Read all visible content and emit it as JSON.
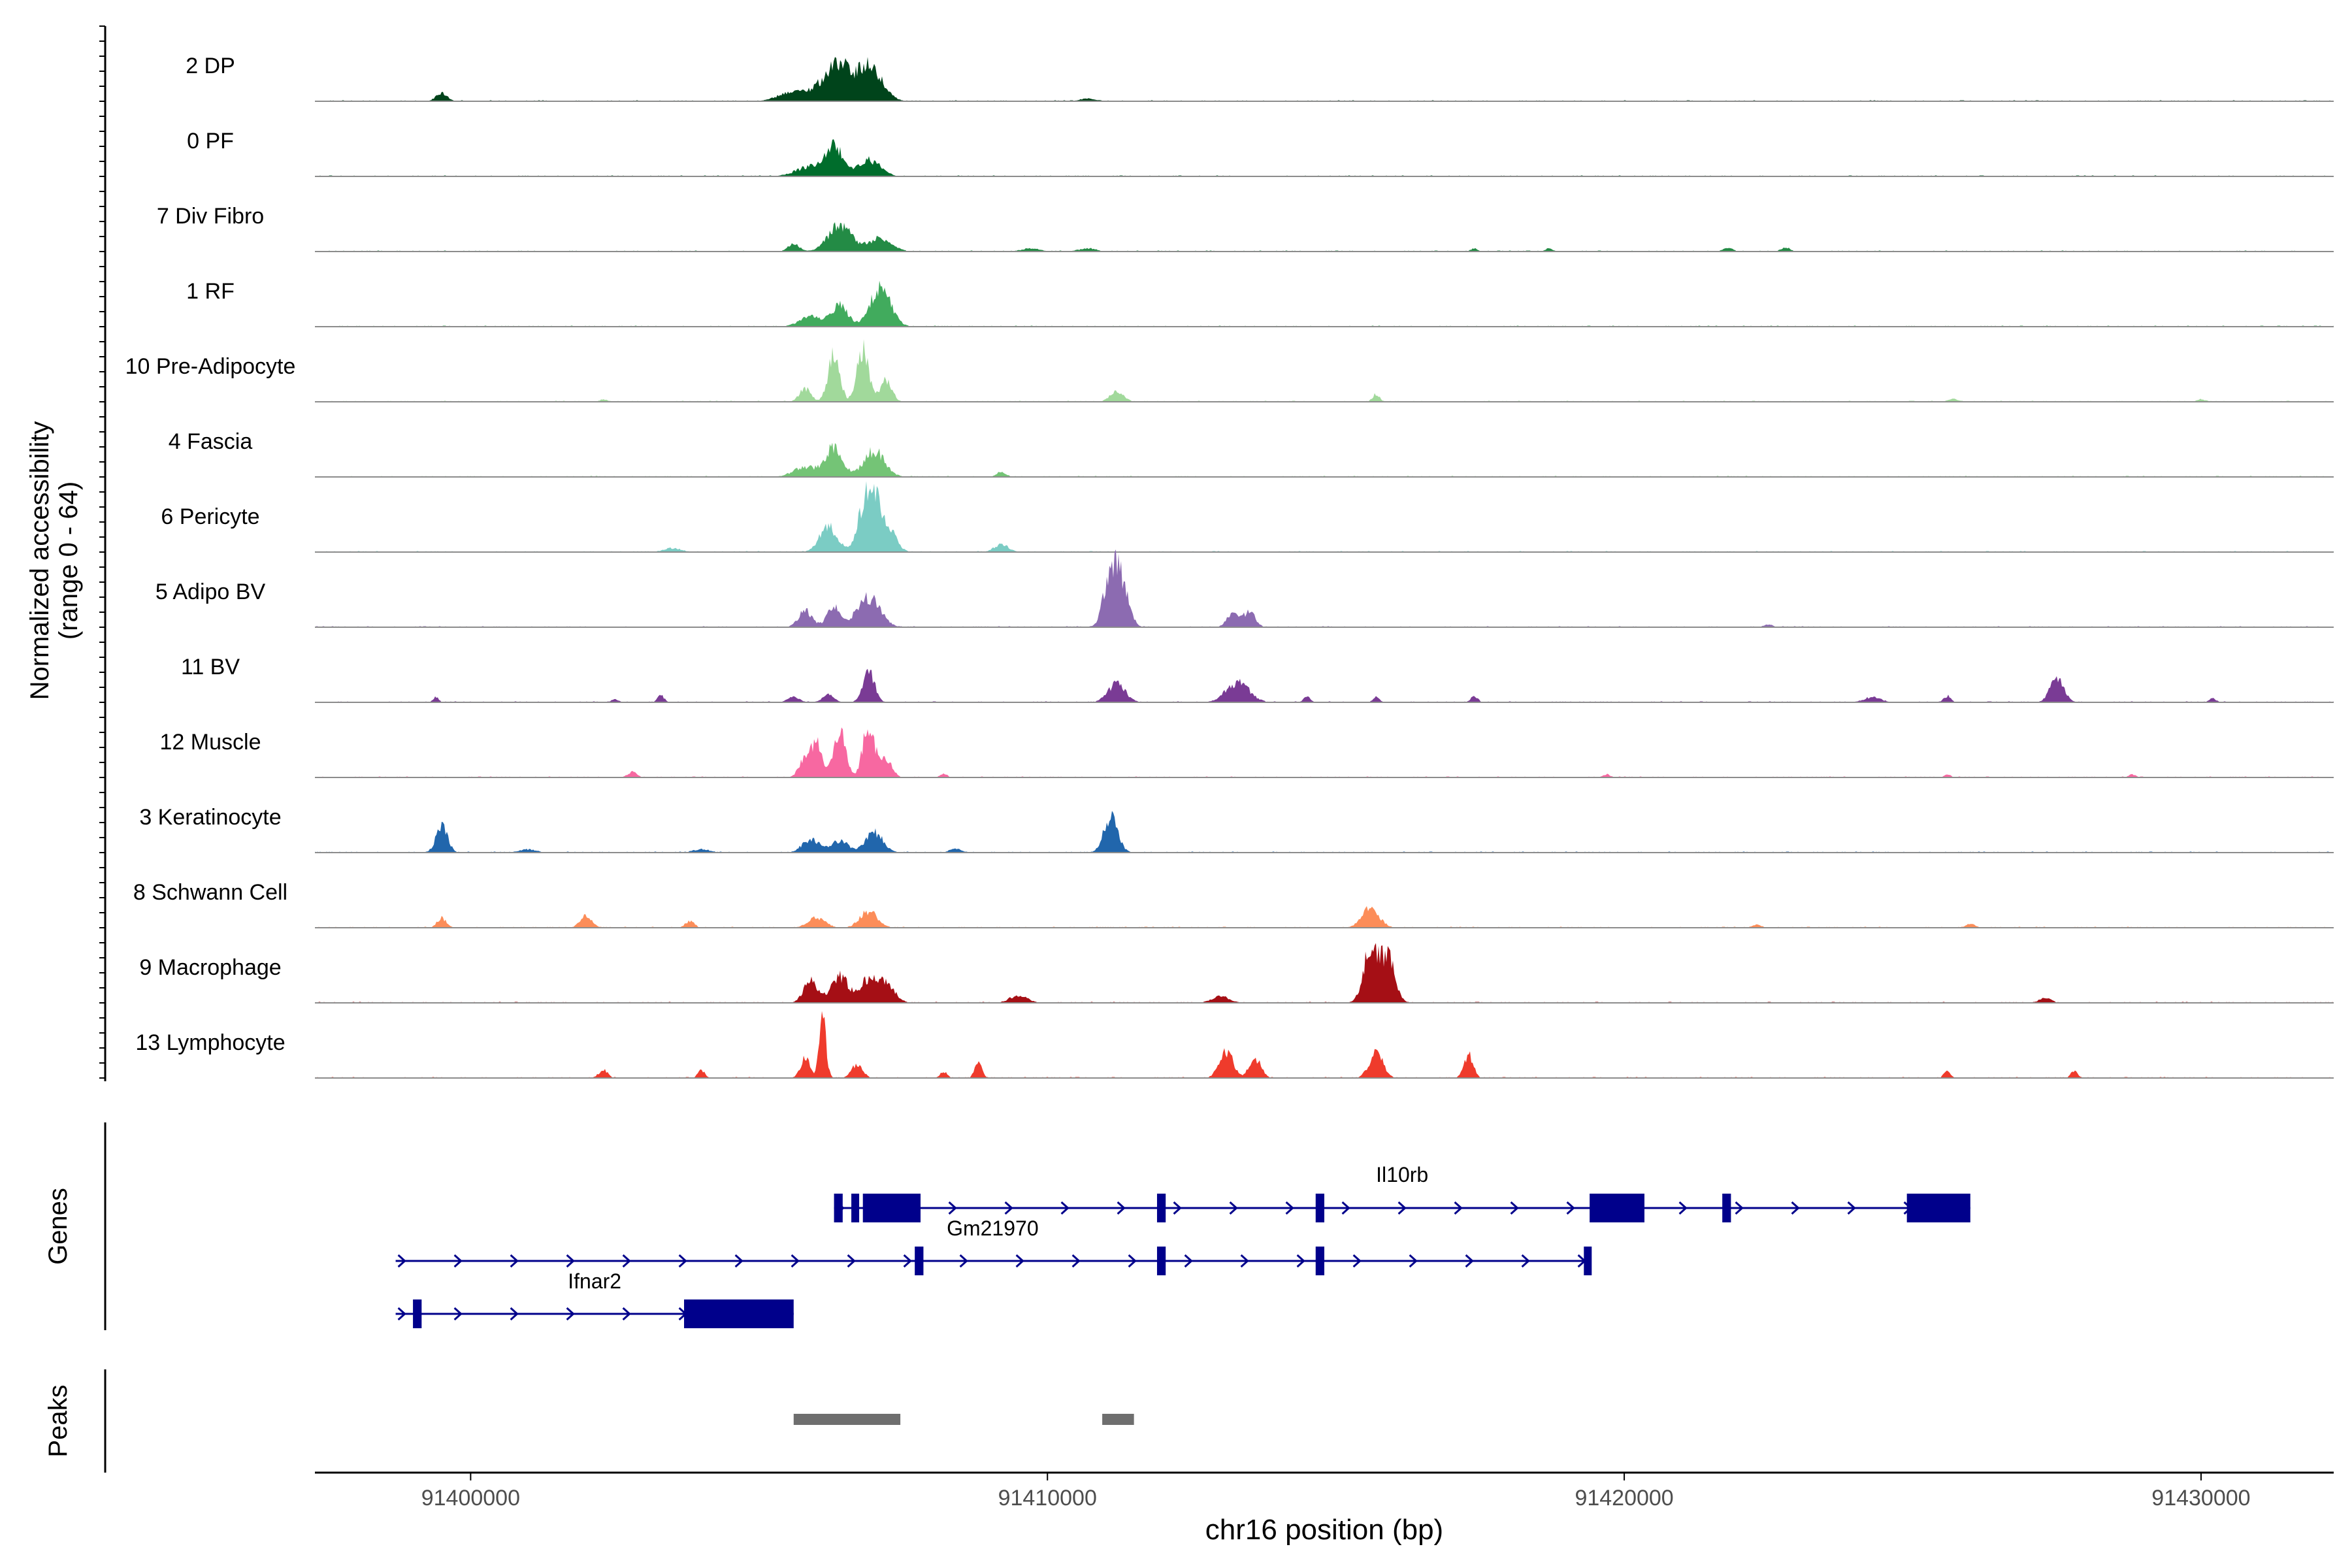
{
  "chart_data": {
    "type": "area",
    "title": "",
    "ylabel_line1": "Normalized accessibility",
    "ylabel_line2": "(range 0 - 64)",
    "xlabel": "chr16 position (bp)",
    "xlim": [
      91397300,
      91432300
    ],
    "ylim": [
      0,
      64
    ],
    "x_ticks": [
      91400000,
      91410000,
      91420000,
      91430000
    ],
    "x_tick_labels": [
      "91400000",
      "91410000",
      "91420000",
      "91430000"
    ],
    "tracks": [
      {
        "name": "2 DP",
        "color": "#00441b",
        "peaks": [
          [
            91399500,
            0.12,
            100
          ],
          [
            91406100,
            0.22,
            180
          ],
          [
            91406400,
            0.5,
            170
          ],
          [
            91406900,
            0.55,
            220
          ],
          [
            91405600,
            0.15,
            250
          ],
          [
            91410700,
            0.04,
            150
          ]
        ]
      },
      {
        "name": "0 PF",
        "color": "#006d2c",
        "peaks": [
          [
            91406300,
            0.45,
            140
          ],
          [
            91406900,
            0.25,
            200
          ],
          [
            91405900,
            0.15,
            250
          ]
        ]
      },
      {
        "name": "7 Div Fibro",
        "color": "#238b45",
        "peaks": [
          [
            91405600,
            0.12,
            100
          ],
          [
            91406400,
            0.4,
            200
          ],
          [
            91407100,
            0.2,
            200
          ],
          [
            91409700,
            0.05,
            150
          ],
          [
            91410700,
            0.05,
            150
          ],
          [
            91417400,
            0.05,
            60
          ],
          [
            91418700,
            0.05,
            60
          ],
          [
            91421800,
            0.06,
            80
          ],
          [
            91422800,
            0.06,
            80
          ]
        ]
      },
      {
        "name": "1 RF",
        "color": "#41ab5d",
        "peaks": [
          [
            91406400,
            0.32,
            140
          ],
          [
            91407100,
            0.6,
            180
          ],
          [
            91405900,
            0.15,
            200
          ]
        ]
      },
      {
        "name": "10 Pre-Adipocyte",
        "color": "#a1d99b",
        "peaks": [
          [
            91406300,
            0.7,
            100
          ],
          [
            91406800,
            0.8,
            100
          ],
          [
            91405800,
            0.2,
            100
          ],
          [
            91407200,
            0.35,
            100
          ],
          [
            91411200,
            0.15,
            120
          ],
          [
            91415700,
            0.12,
            60
          ],
          [
            91402300,
            0.04,
            60
          ],
          [
            91425700,
            0.05,
            80
          ],
          [
            91430000,
            0.04,
            80
          ]
        ]
      },
      {
        "name": "4 Fascia",
        "color": "#74c476",
        "peaks": [
          [
            91406300,
            0.45,
            150
          ],
          [
            91407000,
            0.4,
            180
          ],
          [
            91405800,
            0.15,
            200
          ],
          [
            91409200,
            0.08,
            80
          ]
        ]
      },
      {
        "name": "6 Pericyte",
        "color": "#7bccc4",
        "peaks": [
          [
            91406200,
            0.4,
            150
          ],
          [
            91406900,
            0.95,
            150
          ],
          [
            91407200,
            0.4,
            150
          ],
          [
            91403500,
            0.06,
            150
          ],
          [
            91409200,
            0.12,
            120
          ]
        ]
      },
      {
        "name": "5 Adipo BV",
        "color": "#8c6bb1",
        "peaks": [
          [
            91405800,
            0.25,
            120
          ],
          [
            91406300,
            0.3,
            120
          ],
          [
            91406900,
            0.45,
            200
          ],
          [
            91411100,
            0.85,
            120
          ],
          [
            91411300,
            0.55,
            120
          ],
          [
            91413200,
            0.2,
            100
          ],
          [
            91413500,
            0.25,
            100
          ],
          [
            91422500,
            0.04,
            80
          ]
        ]
      },
      {
        "name": "11 BV",
        "color": "#7a3b95",
        "peaks": [
          [
            91399400,
            0.08,
            50
          ],
          [
            91402500,
            0.05,
            60
          ],
          [
            91403300,
            0.1,
            60
          ],
          [
            91405600,
            0.08,
            100
          ],
          [
            91406200,
            0.12,
            100
          ],
          [
            91406900,
            0.48,
            100
          ],
          [
            91411200,
            0.28,
            150
          ],
          [
            91413300,
            0.3,
            200
          ],
          [
            91414500,
            0.08,
            60
          ],
          [
            91415700,
            0.08,
            60
          ],
          [
            91417400,
            0.1,
            60
          ],
          [
            91424300,
            0.08,
            150
          ],
          [
            91425600,
            0.1,
            60
          ],
          [
            91427500,
            0.35,
            120
          ],
          [
            91430200,
            0.06,
            60
          ]
        ]
      },
      {
        "name": "12 Muscle",
        "color": "#f768a1",
        "peaks": [
          [
            91406000,
            0.5,
            100
          ],
          [
            91406400,
            0.7,
            100
          ],
          [
            91406900,
            0.8,
            100
          ],
          [
            91405800,
            0.3,
            100
          ],
          [
            91407200,
            0.3,
            100
          ],
          [
            91402800,
            0.08,
            80
          ],
          [
            91408200,
            0.06,
            60
          ],
          [
            91419700,
            0.05,
            60
          ],
          [
            91425600,
            0.05,
            60
          ],
          [
            91428800,
            0.05,
            60
          ]
        ]
      },
      {
        "name": "3 Keratinocyte",
        "color": "#2166ac",
        "peaks": [
          [
            91399500,
            0.4,
            100
          ],
          [
            91405900,
            0.2,
            150
          ],
          [
            91406400,
            0.18,
            150
          ],
          [
            91407000,
            0.3,
            150
          ],
          [
            91411100,
            0.55,
            120
          ],
          [
            91401000,
            0.05,
            150
          ],
          [
            91404000,
            0.05,
            150
          ],
          [
            91408400,
            0.06,
            100
          ]
        ]
      },
      {
        "name": "8 Schwann Cell",
        "color": "#fc8d59",
        "peaks": [
          [
            91399500,
            0.15,
            80
          ],
          [
            91402000,
            0.18,
            100
          ],
          [
            91403800,
            0.1,
            80
          ],
          [
            91406000,
            0.15,
            150
          ],
          [
            91406900,
            0.25,
            150
          ],
          [
            91415600,
            0.3,
            150
          ],
          [
            91422300,
            0.05,
            80
          ],
          [
            91426000,
            0.06,
            80
          ]
        ]
      },
      {
        "name": "9 Macrophage",
        "color": "#a50f15",
        "peaks": [
          [
            91405900,
            0.35,
            120
          ],
          [
            91406400,
            0.4,
            150
          ],
          [
            91406900,
            0.35,
            150
          ],
          [
            91407200,
            0.3,
            150
          ],
          [
            91415600,
            0.85,
            120
          ],
          [
            91415900,
            0.7,
            120
          ],
          [
            91409500,
            0.12,
            150
          ],
          [
            91413000,
            0.1,
            150
          ],
          [
            91427300,
            0.08,
            100
          ]
        ]
      },
      {
        "name": "13 Lymphocyte",
        "color": "#ef3b2c",
        "peaks": [
          [
            91402300,
            0.12,
            80
          ],
          [
            91404000,
            0.12,
            60
          ],
          [
            91405800,
            0.3,
            80
          ],
          [
            91406100,
            0.9,
            60
          ],
          [
            91406700,
            0.2,
            100
          ],
          [
            91408800,
            0.25,
            60
          ],
          [
            91413100,
            0.4,
            120
          ],
          [
            91413600,
            0.3,
            100
          ],
          [
            91415700,
            0.4,
            120
          ],
          [
            91417300,
            0.35,
            80
          ],
          [
            91425600,
            0.1,
            60
          ],
          [
            91427800,
            0.1,
            60
          ],
          [
            91408200,
            0.1,
            60
          ]
        ]
      }
    ],
    "genes_label": "Genes",
    "genes": [
      {
        "name": "Il10rb",
        "strand": "+",
        "start": 91406300,
        "end": 91426000,
        "exons": [
          [
            91406300,
            91406450
          ],
          [
            91406600,
            91406700
          ],
          [
            91406800,
            91407800
          ],
          [
            91411900,
            91412050
          ],
          [
            91414650,
            91414800
          ],
          [
            91419400,
            91420350
          ],
          [
            91421700,
            91421850
          ],
          [
            91424900,
            91426000
          ]
        ]
      },
      {
        "name": "Gm21970",
        "strand": "+",
        "start": 91398700,
        "end": 91419400,
        "exons": [
          [
            91407700,
            91407850
          ],
          [
            91411900,
            91412050
          ],
          [
            91414650,
            91414800
          ],
          [
            91419300,
            91419400
          ]
        ]
      },
      {
        "name": "Ifnar2",
        "strand": "+",
        "start": 91398700,
        "end": 91405600,
        "exons": [
          [
            91399000,
            91399150
          ],
          [
            91403700,
            91405600
          ]
        ]
      }
    ],
    "peaks_label": "Peaks",
    "peak_regions": [
      [
        91405600,
        91407450
      ],
      [
        91410950,
        91411500
      ]
    ],
    "colors": {
      "gene": "#00008b",
      "peak": "#6e6e6e",
      "axis": "#000000",
      "baseline": "#8c8c8c"
    }
  }
}
